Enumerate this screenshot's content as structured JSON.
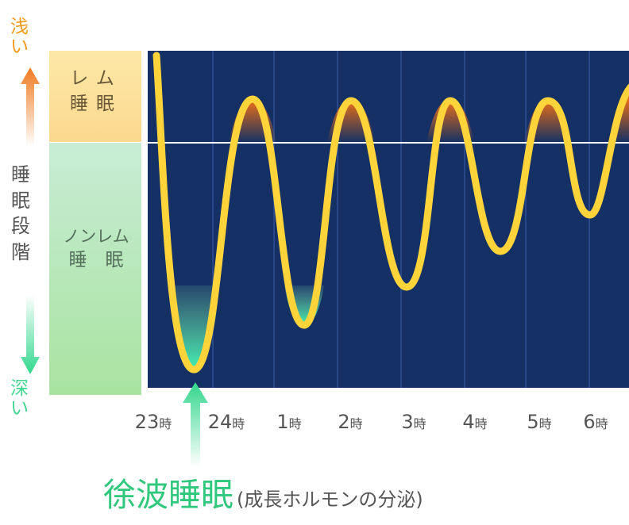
{
  "chart_data": {
    "type": "line",
    "y_axis": {
      "title": "睡眠段階",
      "top_label": "浅い",
      "bottom_label": "深い",
      "bands": [
        {
          "label_line1": "レム",
          "label_line2": "睡眠",
          "color": "#fce19c"
        },
        {
          "label_line1": "ノンレム",
          "label_line2": "睡　眠",
          "color": "#b9e8c8"
        }
      ]
    },
    "x_ticks": [
      {
        "num": "23",
        "unit": "時"
      },
      {
        "num": "24",
        "unit": "時"
      },
      {
        "num": "1",
        "unit": "時"
      },
      {
        "num": "2",
        "unit": "時"
      },
      {
        "num": "3",
        "unit": "時"
      },
      {
        "num": "4",
        "unit": "時"
      },
      {
        "num": "5",
        "unit": "時"
      },
      {
        "num": "6",
        "unit": "時"
      }
    ],
    "annotation": {
      "main": "徐波睡眠",
      "sub": "(成長ホルモンの分泌)"
    },
    "colors": {
      "plot_bg": "#143064",
      "curve": "#ffd43a",
      "rem_fill": "#ee6d14",
      "deep_fill": "#3ee0a0",
      "divider": "#ffffff",
      "arrow_up": "#f08a30",
      "arrow_down": "#34d890"
    }
  }
}
